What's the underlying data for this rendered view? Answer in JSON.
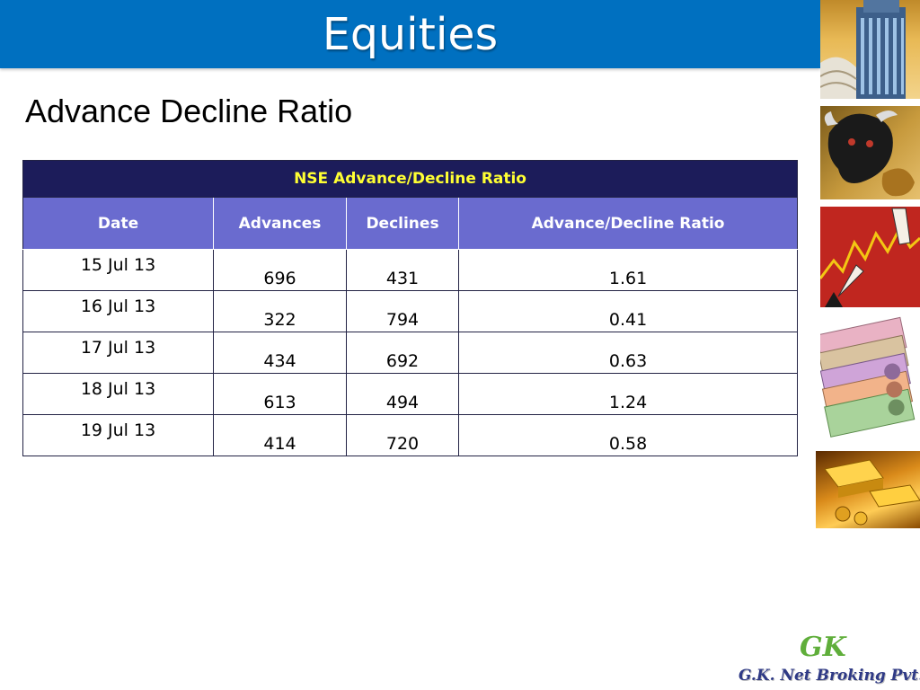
{
  "slide": {
    "title": "Equities",
    "subtitle": "Advance Decline Ratio"
  },
  "table": {
    "caption": "NSE Advance/Decline Ratio",
    "headers": [
      "Date",
      "Advances",
      "Declines",
      "Advance/Decline Ratio"
    ],
    "rows": [
      {
        "date": "15 Jul 13",
        "advances": "696",
        "declines": "431",
        "ratio": "1.61"
      },
      {
        "date": "16 Jul 13",
        "advances": "322",
        "declines": "794",
        "ratio": "0.41"
      },
      {
        "date": "17 Jul 13",
        "advances": "434",
        "declines": "692",
        "ratio": "0.63"
      },
      {
        "date": "18 Jul 13",
        "advances": "613",
        "declines": "494",
        "ratio": "1.24"
      },
      {
        "date": "19 Jul 13",
        "advances": "414",
        "declines": "720",
        "ratio": "0.58"
      }
    ]
  },
  "logo": {
    "mark": "GK",
    "text": "G.K. Net Broking Pvt. Ltd."
  },
  "colors": {
    "header_blue": "#0070c0",
    "table_caption_bg": "#1c1c5a",
    "table_caption_text": "#ffff33",
    "table_header_bg": "#6a6bcf"
  }
}
